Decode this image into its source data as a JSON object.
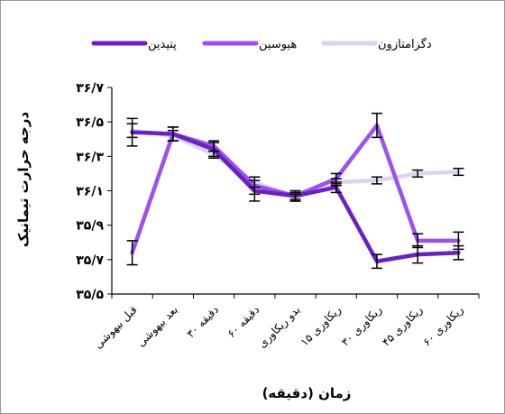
{
  "chart_data": {
    "type": "line",
    "title": "",
    "xlabel": "زمان (دقیقه)",
    "ylabel": "درجه حرارت تیمانیک",
    "ylim": [
      35.5,
      36.7
    ],
    "yticks": [
      35.5,
      35.7,
      35.9,
      36.1,
      36.3,
      36.5,
      36.7
    ],
    "ytick_labels": [
      "۳۵/۵",
      "۳۵/۷",
      "۳۵/۹",
      "۳۶/۱",
      "۳۶/۳",
      "۳۶/۵",
      "۳۶/۷"
    ],
    "categories": [
      "قبل بیهوشی",
      "بعد بیهوشی",
      "دقیقه ۳۰",
      "دقیقه ۶۰",
      "بدو ریکاوری",
      "۱۵ ریکاوری",
      "۳۰ ریکاوری",
      "۴۵ ریکاوری",
      "۶۰ ریکاوری"
    ],
    "grid": false,
    "legend_position": "top",
    "series": [
      {
        "name": "پتیدین",
        "color": "#6a1fc9",
        "values": [
          36.44,
          36.43,
          36.34,
          36.1,
          36.07,
          36.12,
          35.69,
          35.73,
          35.74
        ],
        "errors": [
          0.08,
          0.04,
          0.04,
          0.06,
          0.03,
          0.03,
          0.04,
          0.05,
          0.04
        ]
      },
      {
        "name": "هیوسین",
        "color": "#9e4ff0",
        "values": [
          35.74,
          36.43,
          36.36,
          36.13,
          36.07,
          36.17,
          36.48,
          35.81,
          35.81
        ],
        "errors": [
          0.07,
          0.04,
          0.03,
          0.05,
          0.02,
          0.03,
          0.07,
          0.04,
          0.05
        ]
      },
      {
        "name": "دگزامتازون",
        "color": "#ddd3f3",
        "values": [
          36.45,
          36.42,
          36.31,
          36.15,
          36.06,
          36.15,
          36.16,
          36.2,
          36.21
        ],
        "errors": [
          0.04,
          0.03,
          0.02,
          0.03,
          0.02,
          0.02,
          0.02,
          0.02,
          0.02
        ]
      }
    ]
  }
}
